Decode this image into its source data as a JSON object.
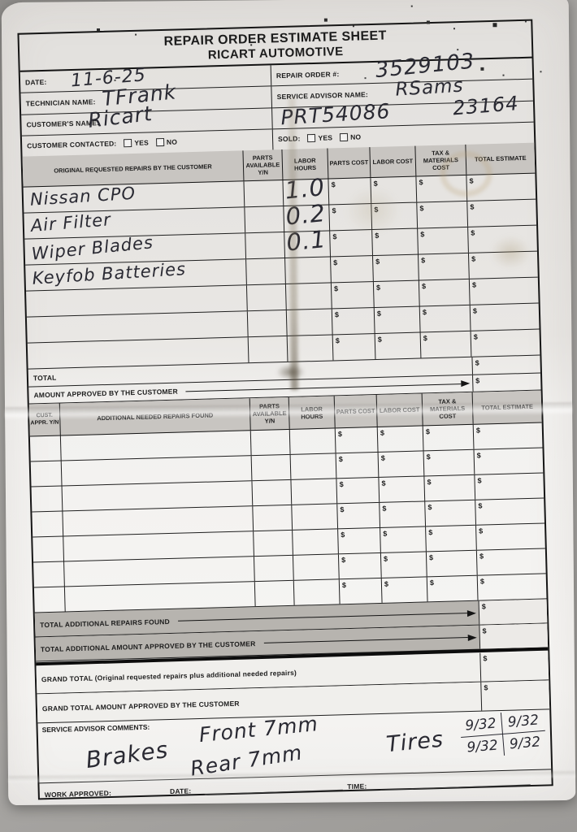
{
  "form": {
    "currency": "$",
    "title_line1": "REPAIR ORDER ESTIMATE SHEET",
    "title_line2": "RICART AUTOMOTIVE",
    "info": {
      "date_label": "DATE:",
      "date_value": "11-6-25",
      "technician_label": "TECHNICIAN NAME:",
      "technician_value": "TFrank",
      "customer_label": "CUSTOMER'S NAME:",
      "customer_value": "Ricart",
      "customer_contacted_label": "CUSTOMER CONTACTED:",
      "repair_order_label": "REPAIR ORDER #:",
      "repair_order_value": "3529103",
      "advisor_label": "SERVICE ADVISOR NAME:",
      "advisor_value": "RSams",
      "stock_value": "PRT54086",
      "tag_value": "23164",
      "sold_label": "SOLD:",
      "yes_label": "YES",
      "no_label": "NO"
    },
    "table1": {
      "headers": {
        "description": "ORIGINAL REQUESTED REPAIRS BY THE CUSTOMER",
        "parts_available": "PARTS AVAILABLE Y/N",
        "labor_hours": "LABOR HOURS",
        "parts_cost": "PARTS COST",
        "labor_cost": "LABOR COST",
        "tax_materials": "TAX & MATERIALS COST",
        "total_estimate": "TOTAL ESTIMATE"
      },
      "rows": [
        {
          "description": "Nissan CPO",
          "labor_hours": "1.0"
        },
        {
          "description": "Air Filter",
          "labor_hours": "0.2"
        },
        {
          "description": "Wiper Blades",
          "labor_hours": "0.1"
        },
        {
          "description": "Keyfob Batteries",
          "labor_hours": ""
        },
        {
          "description": "",
          "labor_hours": ""
        },
        {
          "description": "",
          "labor_hours": ""
        },
        {
          "description": "",
          "labor_hours": ""
        }
      ],
      "total_label": "TOTAL",
      "amount_approved_label": "AMOUNT APPROVED BY THE CUSTOMER"
    },
    "table2": {
      "headers": {
        "cust_appr": "CUST. APPR. Y/N",
        "description": "ADDITIONAL NEEDED REPAIRS FOUND",
        "parts_available": "PARTS AVAILABLE Y/N",
        "labor_hours": "LABOR HOURS",
        "parts_cost": "PARTS COST",
        "labor_cost": "LABOR COST",
        "tax_materials": "TAX & MATERIALS COST",
        "total_estimate": "TOTAL ESTIMATE"
      },
      "rows": [
        {},
        {},
        {},
        {},
        {},
        {},
        {}
      ],
      "total_additional_label": "TOTAL ADDITIONAL REPAIRS FOUND",
      "total_additional_approved_label": "TOTAL ADDITIONAL AMOUNT APPROVED BY THE CUSTOMER"
    },
    "grand": {
      "grand_total_label": "GRAND TOTAL (Original requested repairs plus additional needed repairs)",
      "grand_approved_label": "GRAND TOTAL AMOUNT APPROVED BY THE CUSTOMER"
    },
    "comments": {
      "label": "SERVICE ADVISOR COMMENTS:",
      "brakes_note": "Brakes",
      "front_note": "Front 7mm",
      "rear_note": "Rear 7mm",
      "tires_note": "Tires",
      "tread_front_left": "9/32",
      "tread_front_right": "9/32",
      "tread_rear_left": "9/32",
      "tread_rear_right": "9/32"
    },
    "footer": {
      "work_approved_label": "WORK APPROVED:",
      "date_label": "DATE:",
      "time_label": "TIME:"
    }
  },
  "colors": {
    "photo_background": "#a5a3a0",
    "paper": "#e9e7e4",
    "paper_bright": "#f5f4f2",
    "header_fill": "#c8c5c1",
    "shaded_row_fill": "#b7b4af",
    "printed_ink": "#1c1c1c",
    "handwriting_ink": "#2a2a33"
  }
}
